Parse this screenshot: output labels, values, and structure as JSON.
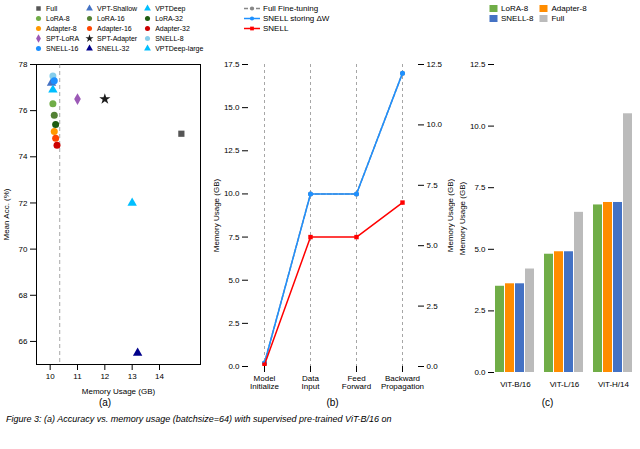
{
  "chart_data": [
    {
      "type": "scatter",
      "xlabel": "Memory Usage (GB)",
      "ylabel": "Mean Acc. (%)",
      "xlim": [
        9.5,
        15.5
      ],
      "ylim": [
        65,
        78
      ],
      "xticks": [
        10,
        11,
        12,
        13,
        14
      ],
      "yticks": [
        66,
        68,
        70,
        72,
        74,
        76,
        78
      ],
      "vlines": [
        10.35
      ],
      "legend": "top",
      "annotations": [
        "(a)"
      ],
      "series": [
        {
          "name": "Full",
          "color": "#555555",
          "marker": "square",
          "x": [
            14.8
          ],
          "values": [
            75.0
          ]
        },
        {
          "name": "VPT-Shallow",
          "color": "#4472C4",
          "marker": "triangle",
          "x": [
            10.05
          ],
          "values": [
            77.2
          ]
        },
        {
          "name": "VPTDeep",
          "color": "#00BFFF",
          "marker": "triangle",
          "x": [
            10.1
          ],
          "values": [
            76.9
          ]
        },
        {
          "name": "LoRA-8",
          "color": "#70AD47",
          "marker": "circle",
          "x": [
            10.1
          ],
          "values": [
            76.3
          ]
        },
        {
          "name": "LoRA-16",
          "color": "#548235",
          "marker": "circle",
          "x": [
            10.15
          ],
          "values": [
            75.8
          ]
        },
        {
          "name": "LoRA-32",
          "color": "#1E5C11",
          "marker": "circle",
          "x": [
            10.2
          ],
          "values": [
            75.4
          ]
        },
        {
          "name": "Adapter-8",
          "color": "#FF9900",
          "marker": "circle",
          "x": [
            10.15
          ],
          "values": [
            75.1
          ]
        },
        {
          "name": "Adapter-16",
          "color": "#FF4500",
          "marker": "circle",
          "x": [
            10.2
          ],
          "values": [
            74.8
          ]
        },
        {
          "name": "Adapter-32",
          "color": "#CC0000",
          "marker": "circle",
          "x": [
            10.25
          ],
          "values": [
            74.5
          ]
        },
        {
          "name": "SPT-LoRA",
          "color": "#9B59B6",
          "marker": "diamond",
          "x": [
            11.0
          ],
          "values": [
            76.5
          ]
        },
        {
          "name": "SPT-Adapter",
          "color": "#1C1C1C",
          "marker": "star",
          "x": [
            12.0
          ],
          "values": [
            76.5
          ]
        },
        {
          "name": "SNELL-8",
          "color": "#87CEEB",
          "marker": "circle",
          "x": [
            10.1
          ],
          "values": [
            77.5
          ]
        },
        {
          "name": "SNELL-16",
          "color": "#1E90FF",
          "marker": "circle",
          "x": [
            10.15
          ],
          "values": [
            77.3
          ]
        },
        {
          "name": "SNELL-32",
          "color": "#00008B",
          "marker": "triangle",
          "x": [
            13.2
          ],
          "values": [
            65.5
          ]
        },
        {
          "name": "VPTDeep-large",
          "color": "#00BFFF",
          "marker": "triangle",
          "x": [
            13.0
          ],
          "values": [
            72.0
          ]
        }
      ]
    },
    {
      "type": "line",
      "categories": [
        "Model\nInitialize",
        "Data\nInput",
        "Feed\nForward",
        "Backward\nPropagation"
      ],
      "ylabel": "Memory Usage (GB)",
      "y2label": "Memory Usage (GB)",
      "ylim": [
        0,
        17.5
      ],
      "yticks": [
        {
          "value": 0,
          "label": "0.0"
        },
        2.5,
        {
          "value": 5,
          "label": "5.0"
        },
        7.5,
        {
          "value": 10,
          "label": "10.0"
        },
        12.5,
        {
          "value": 15,
          "label": "15.0"
        },
        17.5
      ],
      "y2lim": [
        0,
        12.5
      ],
      "y2ticks": [
        {
          "value": 0,
          "label": "0.0"
        },
        2.5,
        {
          "value": 5,
          "label": "5.0"
        },
        7.5,
        {
          "value": 10,
          "label": "10.0"
        },
        12.5
      ],
      "legend": "top",
      "annotations": [
        "(b)"
      ],
      "series": [
        {
          "name": "Full Fine-tuning",
          "color": "#888888",
          "marker": "circle",
          "line_style": "dashed",
          "values": [
            0.2,
            10.0,
            10.0,
            17.0
          ]
        },
        {
          "name": "SNELL storing ΔW",
          "color": "#1E90FF",
          "marker": "circle",
          "line_style": "solid",
          "values": [
            0.2,
            10.0,
            10.0,
            17.0
          ]
        },
        {
          "name": "SNELL",
          "color": "#FF0000",
          "marker": "square",
          "line_style": "solid",
          "values": [
            0.1,
            7.5,
            7.5,
            9.5
          ]
        }
      ]
    },
    {
      "type": "bar",
      "categories": [
        "ViT-B/16",
        "ViT-L/16",
        "ViT-H/14"
      ],
      "ylabel": "Memory Usage (GB)",
      "ylim": [
        0,
        12.5
      ],
      "yticks": [
        {
          "value": 0,
          "label": "0.0"
        },
        2.5,
        {
          "value": 5,
          "label": "5.0"
        },
        7.5,
        {
          "value": 10,
          "label": "10.0"
        },
        12.5
      ],
      "legend": "top",
      "annotations": [
        "(c)"
      ],
      "series": [
        {
          "name": "LoRA-8",
          "color": "#70AD47",
          "values": [
            3.5,
            4.8,
            6.8
          ]
        },
        {
          "name": "Adapter-8",
          "color": "#FF8C00",
          "values": [
            3.6,
            4.9,
            6.9
          ]
        },
        {
          "name": "SNELL-8",
          "color": "#4472C4",
          "values": [
            3.6,
            4.9,
            6.9
          ]
        },
        {
          "name": "Full",
          "color": "#BBBBBB",
          "values": [
            4.2,
            6.5,
            10.5
          ]
        }
      ]
    }
  ],
  "caption": "Figure 3: (a) Accuracy vs. memory usage (batchsize=64) with supervised pre-trained ViT-B/16 on"
}
